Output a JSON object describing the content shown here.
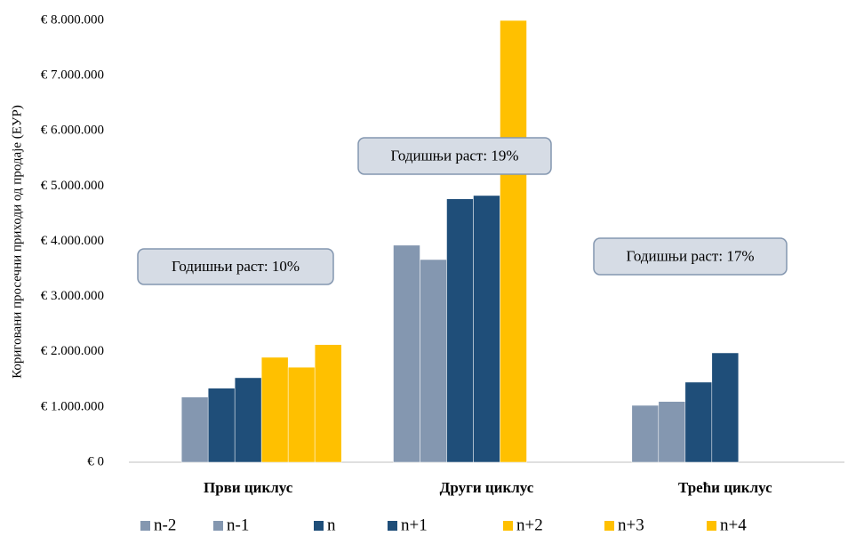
{
  "chart_data": {
    "type": "bar",
    "y_label": "Кориговани просечни приходи од продаје (ЕУР)",
    "categories": [
      "Први циклус",
      "Други циклус",
      "Трећи циклус"
    ],
    "series": [
      {
        "name": "n-2",
        "color": "#8497b0",
        "values": [
          null,
          3930000,
          1030000
        ]
      },
      {
        "name": "n-1",
        "color": "#8497b0",
        "values": [
          1180000,
          3670000,
          1100000
        ]
      },
      {
        "name": "n",
        "color": "#1f4e79",
        "values": [
          1340000,
          4770000,
          1450000
        ]
      },
      {
        "name": "n+1",
        "color": "#1f4e79",
        "values": [
          1530000,
          4830000,
          1980000
        ]
      },
      {
        "name": "n+2",
        "color": "#ffc000",
        "values": [
          1900000,
          8000000,
          null
        ]
      },
      {
        "name": "n+3",
        "color": "#ffc000",
        "values": [
          1720000,
          null,
          null
        ]
      },
      {
        "name": "n+4",
        "color": "#ffc000",
        "values": [
          2130000,
          null,
          null
        ]
      }
    ],
    "ylim": [
      0,
      8000000
    ],
    "yticks": [
      {
        "value": 0,
        "label": "€ 0"
      },
      {
        "value": 1000000,
        "label": "€ 1.000.000"
      },
      {
        "value": 2000000,
        "label": "€ 2.000.000"
      },
      {
        "value": 3000000,
        "label": "€ 3.000.000"
      },
      {
        "value": 4000000,
        "label": "€ 4.000.000"
      },
      {
        "value": 5000000,
        "label": "€ 5.000.000"
      },
      {
        "value": 6000000,
        "label": "€ 6.000.000"
      },
      {
        "value": 7000000,
        "label": "€ 7.000.000"
      },
      {
        "value": 8000000,
        "label": "€ 8.000.000"
      }
    ],
    "annotations": [
      "Годишњи раст: 10%",
      "Годишњи раст: 19%",
      "Годишњи раст: 17%"
    ],
    "legend": "bottom",
    "grid": false
  }
}
